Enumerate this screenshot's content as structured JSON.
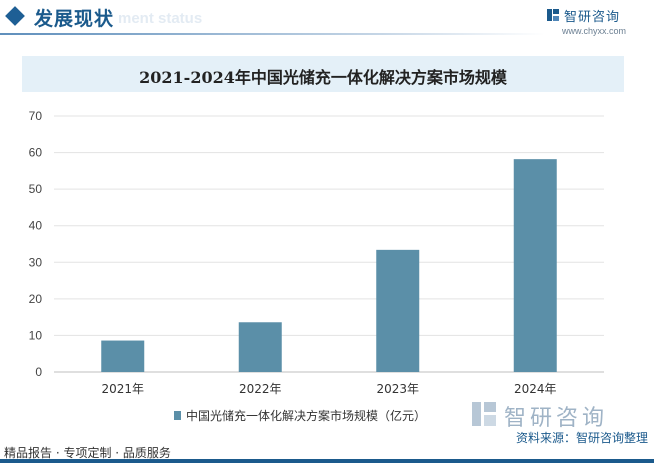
{
  "header": {
    "title": "发展现状",
    "ghost_text": "ment status"
  },
  "brand": {
    "name": "智研咨询",
    "url": "www.chyxx.com"
  },
  "chart_data": {
    "type": "bar",
    "title": "2021-2024年中国光储充一体化解决方案市场规模",
    "categories": [
      "2021年",
      "2022年",
      "2023年",
      "2024年"
    ],
    "series": [
      {
        "name": "中国光储充一体化解决方案市场规模（亿元）",
        "values": [
          8.6,
          13.6,
          33.4,
          58.2
        ]
      }
    ],
    "ylim": [
      0,
      70
    ],
    "yticks": [
      0,
      10,
      20,
      30,
      40,
      50,
      60,
      70
    ],
    "grid": true,
    "legend_position": "bottom",
    "colors": {
      "bar": "#5b8fa8"
    }
  },
  "footer": {
    "left": "精品报告 · 专项定制 · 品质服务",
    "source": "资料来源：智研咨询整理",
    "logo_name": "智研咨询"
  }
}
